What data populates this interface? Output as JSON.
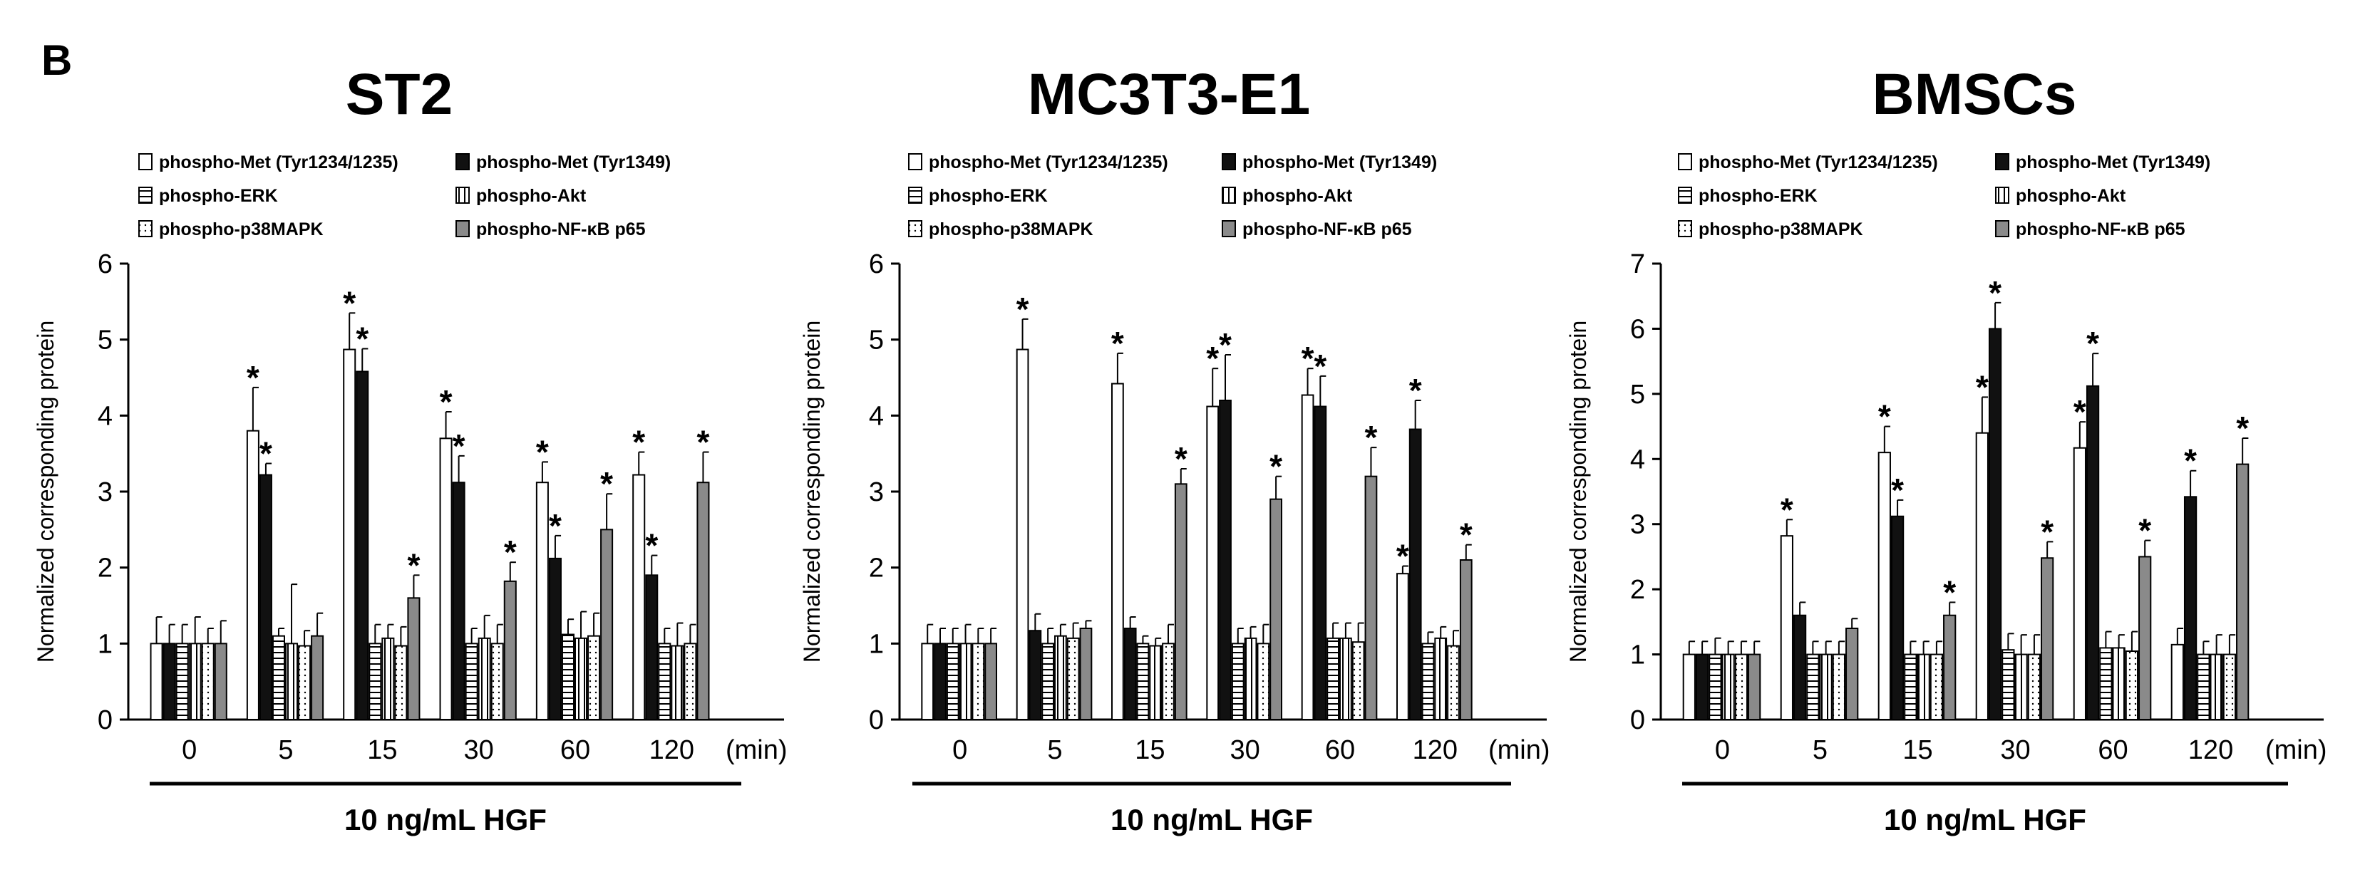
{
  "panel_label": "B",
  "colors": {
    "white": "#ffffff",
    "black": "#111111",
    "gray": "#8a8a8a",
    "axis": "#000000"
  },
  "chart_data": [
    {
      "type": "bar",
      "title": "ST2",
      "ylabel": "Normalized corresponding protein",
      "xlabel": "10 ng/mL HGF",
      "x_unit": "(min)",
      "categories": [
        "0",
        "5",
        "15",
        "30",
        "60",
        "120"
      ],
      "ylim": [
        0,
        6
      ],
      "yticks": [
        "0",
        "1",
        "2",
        "3",
        "4",
        "5",
        "6"
      ],
      "legend": "top",
      "series": [
        {
          "name": "phospho-Met (Tyr1234/1235)",
          "pattern": "white",
          "values": [
            1.0,
            3.8,
            4.87,
            3.7,
            3.12,
            3.22
          ],
          "errors": [
            0.35,
            0.57,
            0.48,
            0.35,
            0.27,
            0.3
          ],
          "sig": [
            false,
            true,
            true,
            true,
            true,
            true
          ]
        },
        {
          "name": "phospho-Met (Tyr1349)",
          "pattern": "black",
          "values": [
            1.0,
            3.22,
            4.58,
            3.12,
            2.12,
            1.9
          ],
          "errors": [
            0.25,
            0.15,
            0.3,
            0.35,
            0.3,
            0.26
          ],
          "sig": [
            false,
            true,
            true,
            true,
            true,
            true
          ]
        },
        {
          "name": "phospho-ERK",
          "pattern": "hstripe",
          "values": [
            1.0,
            1.1,
            1.0,
            1.0,
            1.12,
            1.0
          ],
          "errors": [
            0.25,
            0.1,
            0.25,
            0.2,
            0.2,
            0.2
          ],
          "sig": [
            false,
            false,
            false,
            false,
            false,
            false
          ]
        },
        {
          "name": "phospho-Akt",
          "pattern": "vstripe",
          "values": [
            1.0,
            1.0,
            1.07,
            1.07,
            1.07,
            0.97
          ],
          "errors": [
            0.35,
            0.78,
            0.18,
            0.3,
            0.35,
            0.3
          ],
          "sig": [
            false,
            false,
            false,
            false,
            false,
            false
          ]
        },
        {
          "name": "phospho-p38MAPK",
          "pattern": "dots",
          "values": [
            1.0,
            0.97,
            0.97,
            1.0,
            1.1,
            1.0
          ],
          "errors": [
            0.2,
            0.2,
            0.25,
            0.25,
            0.3,
            0.25
          ],
          "sig": [
            false,
            false,
            false,
            false,
            false,
            false
          ]
        },
        {
          "name": "phospho-NF-κB p65",
          "pattern": "gray",
          "values": [
            1.0,
            1.1,
            1.6,
            1.82,
            2.5,
            3.12
          ],
          "errors": [
            0.3,
            0.3,
            0.3,
            0.25,
            0.47,
            0.4
          ],
          "sig": [
            false,
            false,
            true,
            true,
            true,
            true
          ]
        }
      ]
    },
    {
      "type": "bar",
      "title": "MC3T3-E1",
      "ylabel": "Normalized corresponding protein",
      "xlabel": "10 ng/mL HGF",
      "x_unit": "(min)",
      "categories": [
        "0",
        "5",
        "15",
        "30",
        "60",
        "120"
      ],
      "ylim": [
        0,
        6
      ],
      "yticks": [
        "0",
        "1",
        "2",
        "3",
        "4",
        "5",
        "6"
      ],
      "legend": "top",
      "series": [
        {
          "name": "phospho-Met (Tyr1234/1235)",
          "pattern": "white",
          "values": [
            1.0,
            4.87,
            4.42,
            4.12,
            4.27,
            1.92
          ],
          "errors": [
            0.25,
            0.4,
            0.4,
            0.5,
            0.35,
            0.1
          ],
          "sig": [
            false,
            true,
            true,
            true,
            true,
            true
          ]
        },
        {
          "name": "phospho-Met (Tyr1349)",
          "pattern": "black",
          "values": [
            1.0,
            1.17,
            1.2,
            4.2,
            4.12,
            3.82
          ],
          "errors": [
            0.2,
            0.22,
            0.15,
            0.6,
            0.4,
            0.38
          ],
          "sig": [
            false,
            false,
            false,
            true,
            true,
            true
          ]
        },
        {
          "name": "phospho-ERK",
          "pattern": "hstripe",
          "values": [
            1.0,
            1.0,
            1.0,
            1.0,
            1.07,
            1.0
          ],
          "errors": [
            0.2,
            0.2,
            0.1,
            0.2,
            0.2,
            0.15
          ],
          "sig": [
            false,
            false,
            false,
            false,
            false,
            false
          ]
        },
        {
          "name": "phospho-Akt",
          "pattern": "vstripe",
          "values": [
            1.0,
            1.1,
            0.97,
            1.07,
            1.07,
            1.07
          ],
          "errors": [
            0.25,
            0.15,
            0.1,
            0.15,
            0.2,
            0.15
          ],
          "sig": [
            false,
            false,
            false,
            false,
            false,
            false
          ]
        },
        {
          "name": "phospho-p38MAPK",
          "pattern": "dots",
          "values": [
            1.0,
            1.07,
            1.0,
            1.0,
            1.02,
            0.97
          ],
          "errors": [
            0.2,
            0.2,
            0.25,
            0.25,
            0.25,
            0.2
          ],
          "sig": [
            false,
            false,
            false,
            false,
            false,
            false
          ]
        },
        {
          "name": "phospho-NF-κB p65",
          "pattern": "gray",
          "values": [
            1.0,
            1.2,
            3.1,
            2.9,
            3.2,
            2.1
          ],
          "errors": [
            0.2,
            0.1,
            0.2,
            0.3,
            0.38,
            0.2
          ],
          "sig": [
            false,
            false,
            true,
            true,
            true,
            true
          ]
        }
      ]
    },
    {
      "type": "bar",
      "title": "BMSCs",
      "ylabel": "Normalized corresponding protein",
      "xlabel": "10 ng/mL HGF",
      "x_unit": "(min)",
      "categories": [
        "0",
        "5",
        "15",
        "30",
        "60",
        "120"
      ],
      "ylim": [
        0,
        7
      ],
      "yticks": [
        "0",
        "1",
        "2",
        "3",
        "4",
        "5",
        "6",
        "7"
      ],
      "legend": "top",
      "series": [
        {
          "name": "phospho-Met (Tyr1234/1235)",
          "pattern": "white",
          "values": [
            1.0,
            2.82,
            4.1,
            4.4,
            4.17,
            1.15
          ],
          "errors": [
            0.2,
            0.25,
            0.4,
            0.55,
            0.4,
            0.25
          ],
          "sig": [
            false,
            true,
            true,
            true,
            true,
            false
          ]
        },
        {
          "name": "phospho-Met (Tyr1349)",
          "pattern": "black",
          "values": [
            1.0,
            1.6,
            3.12,
            6.0,
            5.12,
            3.42
          ],
          "errors": [
            0.2,
            0.2,
            0.25,
            0.4,
            0.5,
            0.4
          ],
          "sig": [
            false,
            false,
            true,
            true,
            true,
            true
          ]
        },
        {
          "name": "phospho-ERK",
          "pattern": "hstripe",
          "values": [
            1.0,
            1.0,
            1.0,
            1.07,
            1.1,
            1.0
          ],
          "errors": [
            0.25,
            0.2,
            0.2,
            0.25,
            0.25,
            0.2
          ],
          "sig": [
            false,
            false,
            false,
            false,
            false,
            false
          ]
        },
        {
          "name": "phospho-Akt",
          "pattern": "vstripe",
          "values": [
            1.0,
            1.0,
            1.0,
            1.0,
            1.1,
            1.0
          ],
          "errors": [
            0.2,
            0.2,
            0.2,
            0.3,
            0.2,
            0.3
          ],
          "sig": [
            false,
            false,
            false,
            false,
            false,
            false
          ]
        },
        {
          "name": "phospho-p38MAPK",
          "pattern": "dots",
          "values": [
            1.0,
            1.0,
            1.0,
            1.0,
            1.05,
            1.0
          ],
          "errors": [
            0.2,
            0.2,
            0.2,
            0.3,
            0.3,
            0.3
          ],
          "sig": [
            false,
            false,
            false,
            false,
            false,
            false
          ]
        },
        {
          "name": "phospho-NF-κB p65",
          "pattern": "gray",
          "values": [
            1.0,
            1.4,
            1.6,
            2.48,
            2.5,
            3.92
          ],
          "errors": [
            0.2,
            0.15,
            0.2,
            0.25,
            0.25,
            0.4
          ],
          "sig": [
            false,
            false,
            true,
            true,
            true,
            true
          ]
        }
      ]
    }
  ]
}
